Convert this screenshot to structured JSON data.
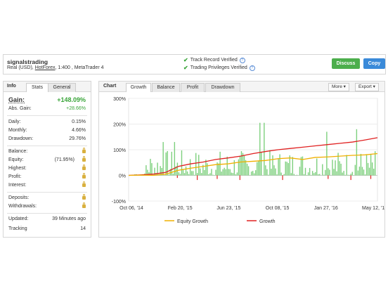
{
  "header": {
    "account_name": "signalstrading",
    "account_type": "Real (USD),",
    "broker": "HotForex",
    "leverage_platform": ", 1:400 , MetaTrader 4",
    "verifications": [
      "Track Record Verified",
      "Trading Privileges Verified"
    ],
    "discuss_label": "Discuss",
    "copy_label": "Copy"
  },
  "left_panel": {
    "title": "Info",
    "tabs": [
      "Stats",
      "General"
    ],
    "gain_label": "Gain:",
    "gain_value": "+148.09%",
    "abs_gain_label": "Abs. Gain:",
    "abs_gain_value": "+28.66%",
    "daily_label": "Daily:",
    "daily_value": "0.15%",
    "monthly_label": "Monthly:",
    "monthly_value": "4.66%",
    "drawdown_label": "Drawdown:",
    "drawdown_value": "29.76%",
    "balance_label": "Balance:",
    "equity_label": "Equity:",
    "equity_pct": "(71.95%)",
    "highest_label": "Highest:",
    "profit_label": "Profit:",
    "interest_label": "Interest:",
    "deposits_label": "Deposits:",
    "withdrawals_label": "Withdrawals:",
    "updated_label": "Updated:",
    "updated_value": "39 Minutes ago",
    "tracking_label": "Tracking",
    "tracking_value": "14"
  },
  "right_panel": {
    "title": "Chart",
    "tabs": [
      "Growth",
      "Balance",
      "Profit",
      "Drawdown"
    ],
    "active_tab": "Growth",
    "more_label": "More",
    "export_label": "Export"
  },
  "chart_data": {
    "type": "line",
    "x_labels": [
      "Oct 06, '14",
      "Feb 20, '15",
      "Jun 23, '15",
      "Oct 08, '15",
      "Jan 27, '16",
      "May 12, '16"
    ],
    "y_tick_labels": [
      "300%",
      "200%",
      "100%",
      "0%",
      "-100%"
    ],
    "ylim": [
      -100,
      300
    ],
    "legend_position": "bottom",
    "series": [
      {
        "name": "Growth",
        "color": "#e02020",
        "x": [
          0,
          5,
          10,
          15,
          20,
          25,
          30,
          35,
          40,
          45,
          50,
          55,
          60,
          65,
          70,
          75,
          80,
          85,
          90,
          95,
          100
        ],
        "y": [
          0,
          2,
          5,
          12,
          35,
          45,
          52,
          62,
          68,
          75,
          85,
          93,
          100,
          105,
          110,
          115,
          120,
          125,
          130,
          138,
          147
        ]
      },
      {
        "name": "Equity Growth",
        "color": "#f0b000",
        "x": [
          0,
          5,
          10,
          15,
          20,
          25,
          30,
          35,
          40,
          45,
          50,
          55,
          60,
          65,
          70,
          75,
          80,
          85,
          90,
          95,
          100
        ],
        "y": [
          0,
          1,
          0,
          5,
          20,
          28,
          35,
          42,
          45,
          52,
          55,
          58,
          65,
          68,
          62,
          70,
          72,
          75,
          78,
          80,
          85
        ]
      }
    ],
    "bar_color": "#7ed07e",
    "negative_bar_color": "#e02020"
  }
}
